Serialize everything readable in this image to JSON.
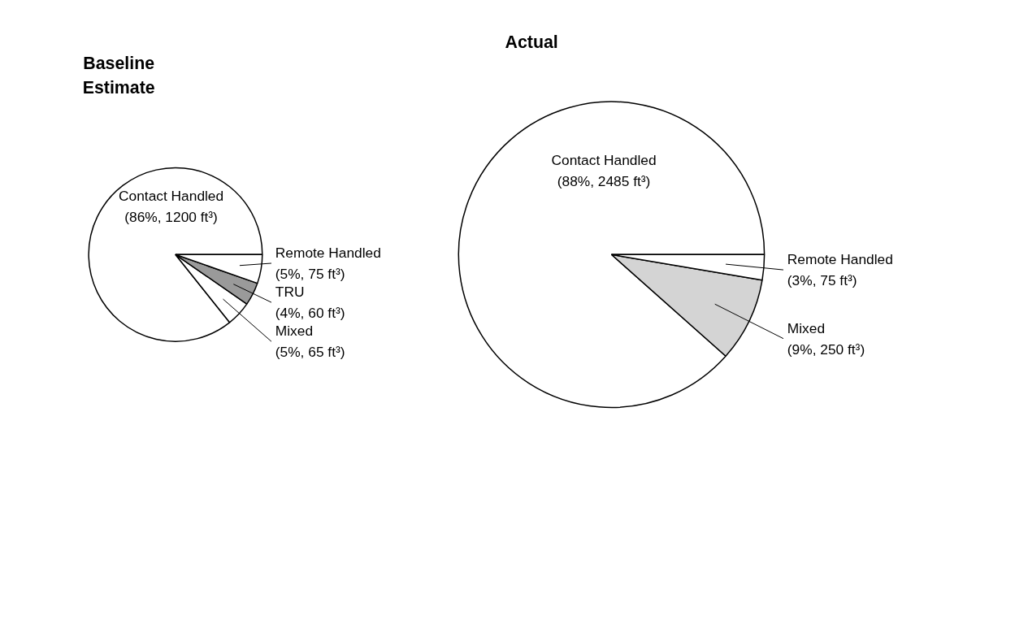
{
  "chart_data": [
    {
      "type": "pie",
      "title": "Baseline\nEstimate",
      "categories": [
        "Contact Handled",
        "Mixed",
        "TRU",
        "Remote Handled"
      ],
      "values": [
        1200,
        65,
        60,
        75
      ],
      "value_labels": [
        "(86%, 1200 ft³)",
        "(5%, 65 ft³)",
        "(4%, 60 ft³)",
        "(5%, 75 ft³)"
      ],
      "colors": [
        "#ffffff",
        "#ffffff",
        "#9a9a9a",
        "#ffffff"
      ]
    },
    {
      "type": "pie",
      "title": "Actual",
      "categories": [
        "Contact Handled",
        "Mixed",
        "Remote Handled"
      ],
      "values": [
        2485,
        250,
        75
      ],
      "value_labels": [
        "(88%, 2485 ft³)",
        "(9%, 250 ft³)",
        "(3%, 75 ft³)"
      ],
      "colors": [
        "#ffffff",
        "#d4d4d4",
        "#ffffff"
      ]
    }
  ]
}
